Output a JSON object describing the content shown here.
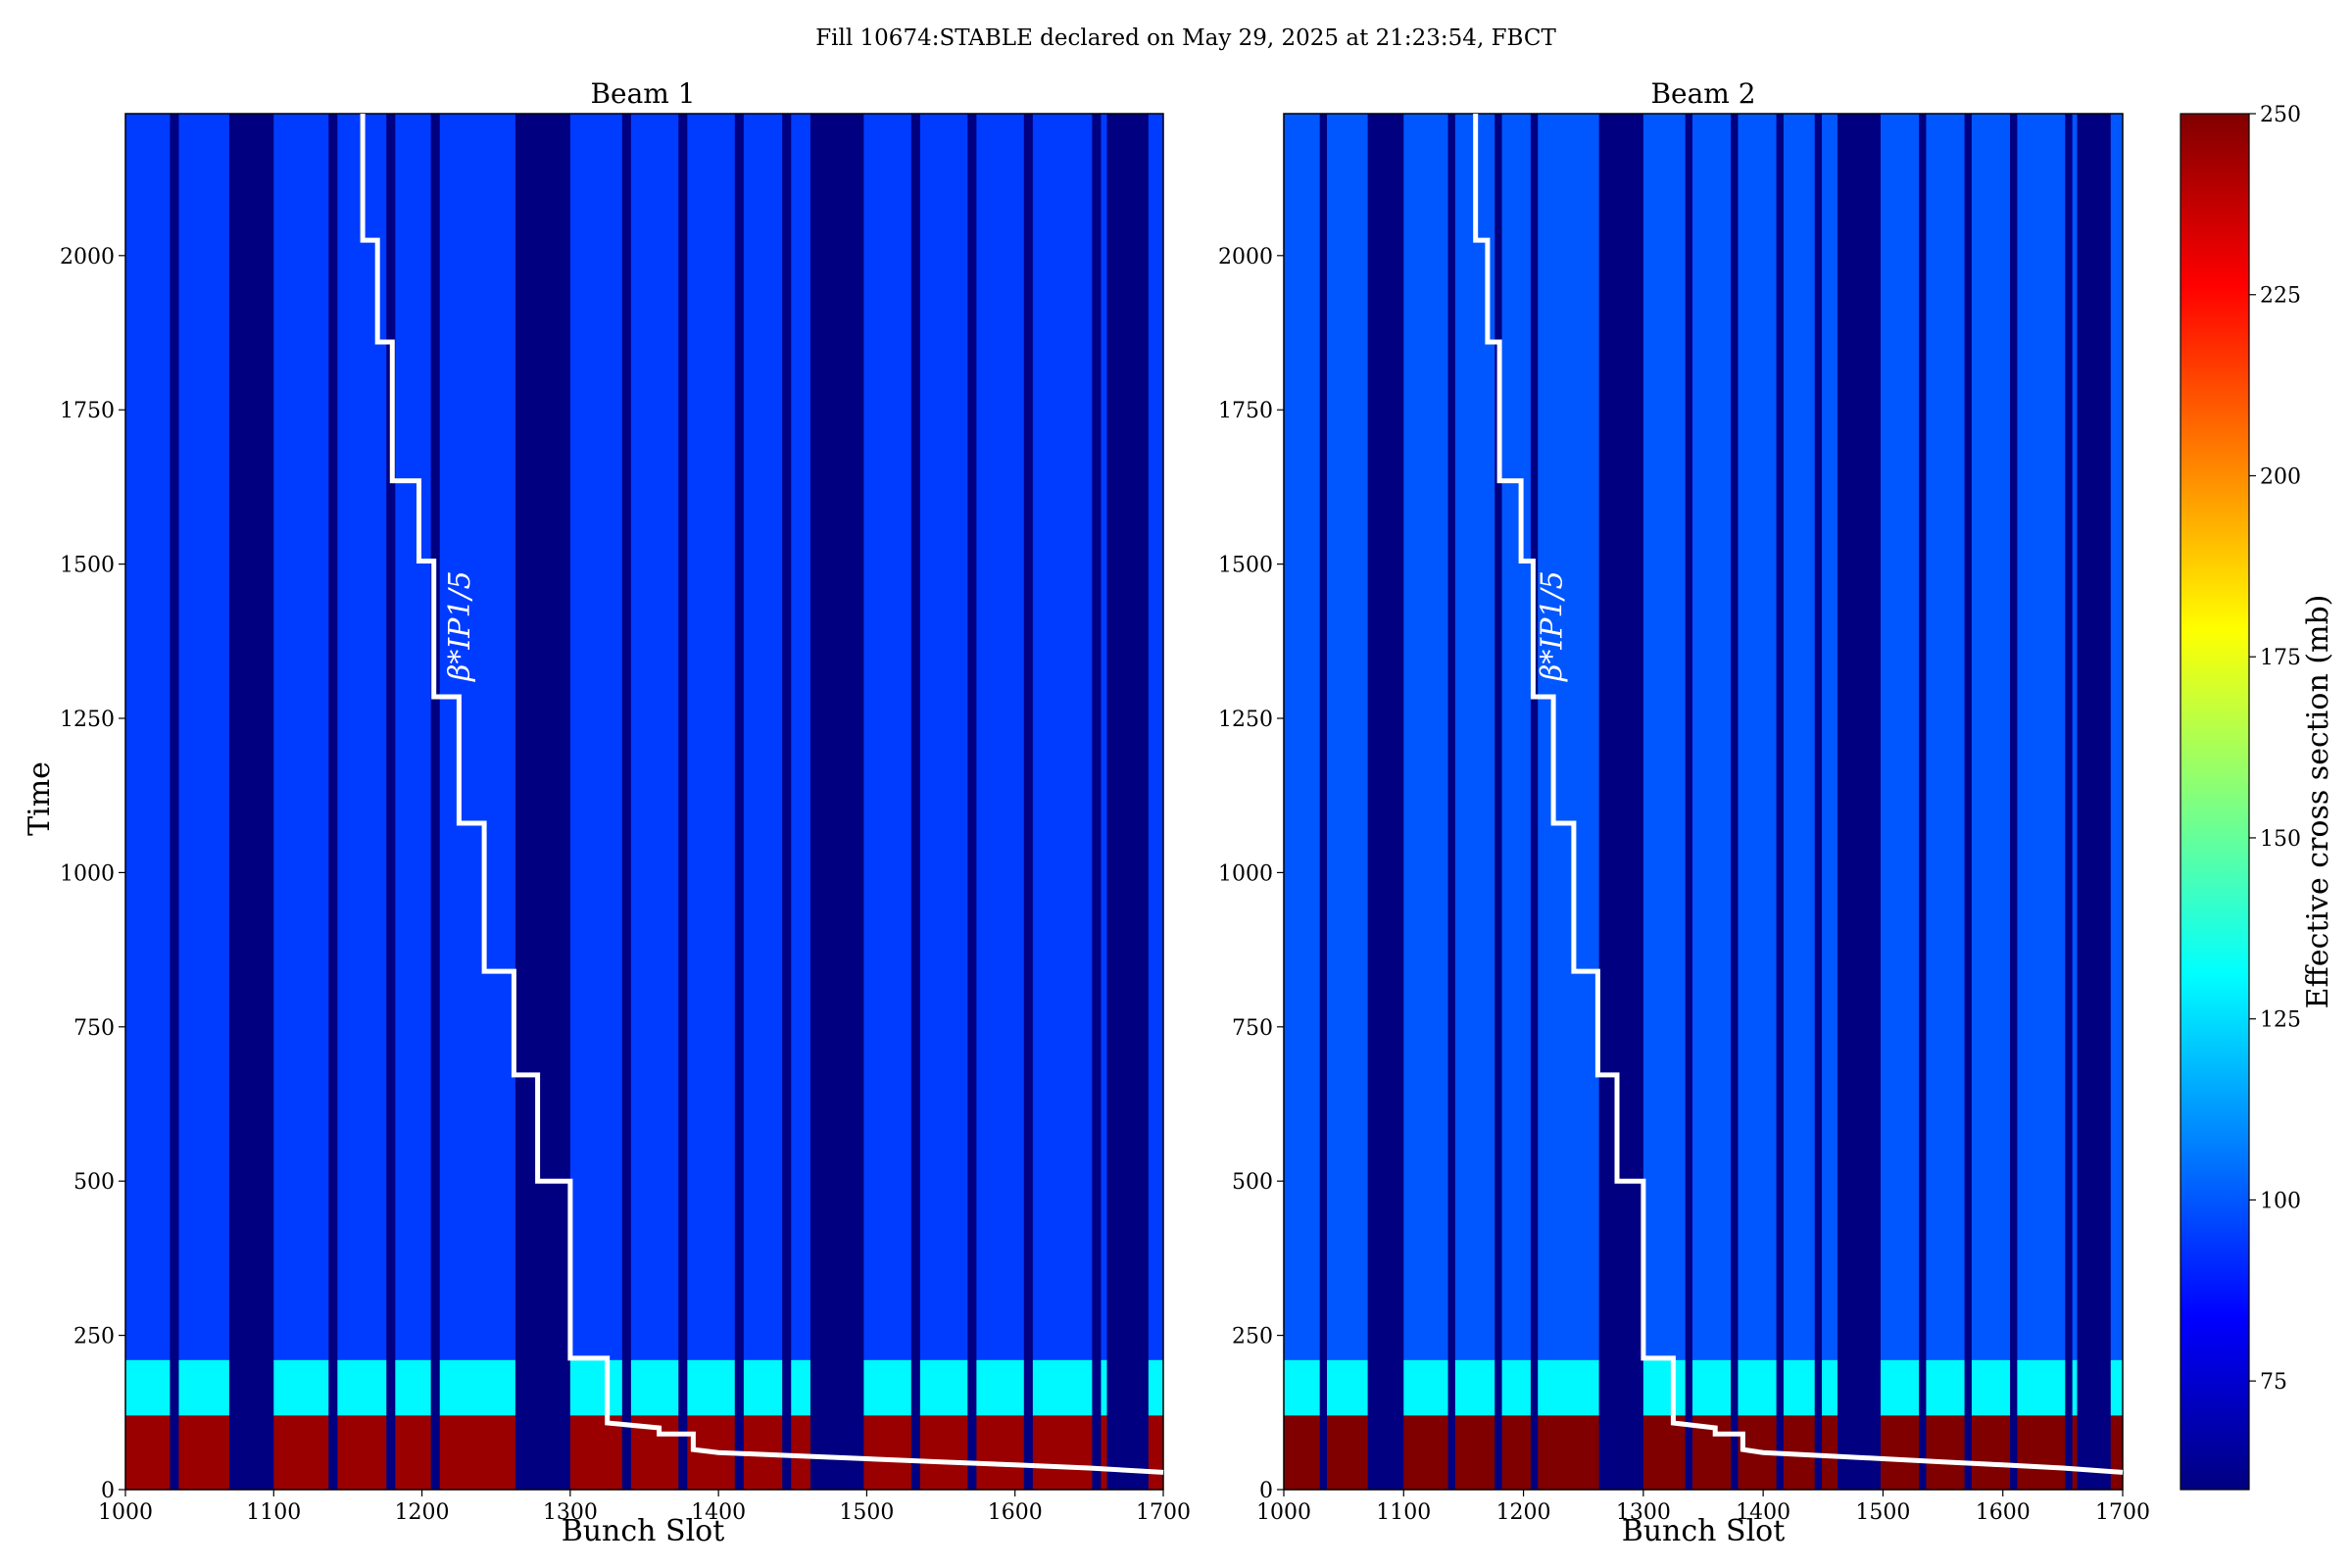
{
  "figure": {
    "suptitle": "Fill 10674:STABLE declared on May 29, 2025 at 21:23:54, FBCT",
    "colors": {
      "background_low": "#000080",
      "stripe_blue": "#1846e6",
      "overlay_line": "#ffffff"
    },
    "colormap": "jet"
  },
  "chart_data": [
    {
      "type": "heatmap",
      "title": "Beam 1",
      "xlabel": "Bunch Slot",
      "ylabel": "Time",
      "xlim": [
        1000,
        1700
      ],
      "ylim": [
        0,
        2230
      ],
      "xticks": [
        1000,
        1100,
        1200,
        1300,
        1400,
        1500,
        1600,
        1700
      ],
      "yticks": [
        0,
        250,
        500,
        750,
        1000,
        1250,
        1500,
        1750,
        2000
      ],
      "filled_slot_ranges": [
        [
          1000,
          1030
        ],
        [
          1036,
          1070
        ],
        [
          1100,
          1137
        ],
        [
          1143,
          1176
        ],
        [
          1182,
          1206
        ],
        [
          1212,
          1263
        ],
        [
          1300,
          1335
        ],
        [
          1341,
          1373
        ],
        [
          1379,
          1411
        ],
        [
          1417,
          1443
        ],
        [
          1449,
          1462
        ],
        [
          1498,
          1530
        ],
        [
          1536,
          1568
        ],
        [
          1574,
          1606
        ],
        [
          1612,
          1652
        ],
        [
          1658,
          1662
        ],
        [
          1690,
          1700
        ]
      ],
      "high_region": {
        "time_range": [
          0,
          120
        ],
        "value_mb": 245
      },
      "mid_band": {
        "time_range": [
          120,
          210
        ],
        "value_mb": 130
      },
      "bulk_value_mb": 95,
      "overlay_label": "β*IP1/5"
    },
    {
      "type": "heatmap",
      "title": "Beam 2",
      "xlabel": "Bunch Slot",
      "ylabel": "",
      "xlim": [
        1000,
        1700
      ],
      "ylim": [
        0,
        2230
      ],
      "xticks": [
        1000,
        1100,
        1200,
        1300,
        1400,
        1500,
        1600,
        1700
      ],
      "yticks": [
        0,
        250,
        500,
        750,
        1000,
        1250,
        1500,
        1750,
        2000
      ],
      "filled_slot_ranges": [
        [
          1000,
          1030
        ],
        [
          1036,
          1070
        ],
        [
          1100,
          1137
        ],
        [
          1143,
          1176
        ],
        [
          1182,
          1206
        ],
        [
          1212,
          1263
        ],
        [
          1300,
          1335
        ],
        [
          1341,
          1373
        ],
        [
          1379,
          1411
        ],
        [
          1417,
          1443
        ],
        [
          1449,
          1462
        ],
        [
          1498,
          1530
        ],
        [
          1536,
          1568
        ],
        [
          1574,
          1606
        ],
        [
          1612,
          1652
        ],
        [
          1658,
          1662
        ],
        [
          1690,
          1700
        ]
      ],
      "high_region": {
        "time_range": [
          0,
          120
        ],
        "value_mb": 250
      },
      "mid_band": {
        "time_range": [
          120,
          210
        ],
        "value_mb": 130
      },
      "bulk_value_mb": 100,
      "overlay_label": "β*IP1/5"
    }
  ],
  "overlay_beta_star": {
    "name": "β*IP1/5",
    "points": [
      [
        1160,
        2230
      ],
      [
        1160,
        2025
      ],
      [
        1170,
        2025
      ],
      [
        1170,
        1860
      ],
      [
        1180,
        1860
      ],
      [
        1180,
        1635
      ],
      [
        1198,
        1635
      ],
      [
        1198,
        1505
      ],
      [
        1208,
        1505
      ],
      [
        1208,
        1285
      ],
      [
        1225,
        1285
      ],
      [
        1225,
        1080
      ],
      [
        1242,
        1080
      ],
      [
        1242,
        840
      ],
      [
        1262,
        840
      ],
      [
        1262,
        672
      ],
      [
        1278,
        672
      ],
      [
        1278,
        500
      ],
      [
        1300,
        500
      ],
      [
        1300,
        213
      ],
      [
        1325,
        213
      ],
      [
        1325,
        108
      ],
      [
        1360,
        100
      ],
      [
        1360,
        90
      ],
      [
        1383,
        90
      ],
      [
        1383,
        65
      ],
      [
        1400,
        60
      ],
      [
        1450,
        55
      ],
      [
        1500,
        50
      ],
      [
        1550,
        45
      ],
      [
        1600,
        40
      ],
      [
        1650,
        35
      ],
      [
        1700,
        28
      ]
    ]
  },
  "colorbar": {
    "label": "Effective cross section (mb)",
    "vmin": 60,
    "vmax": 250,
    "ticks": [
      75,
      100,
      125,
      150,
      175,
      200,
      225,
      250
    ]
  }
}
